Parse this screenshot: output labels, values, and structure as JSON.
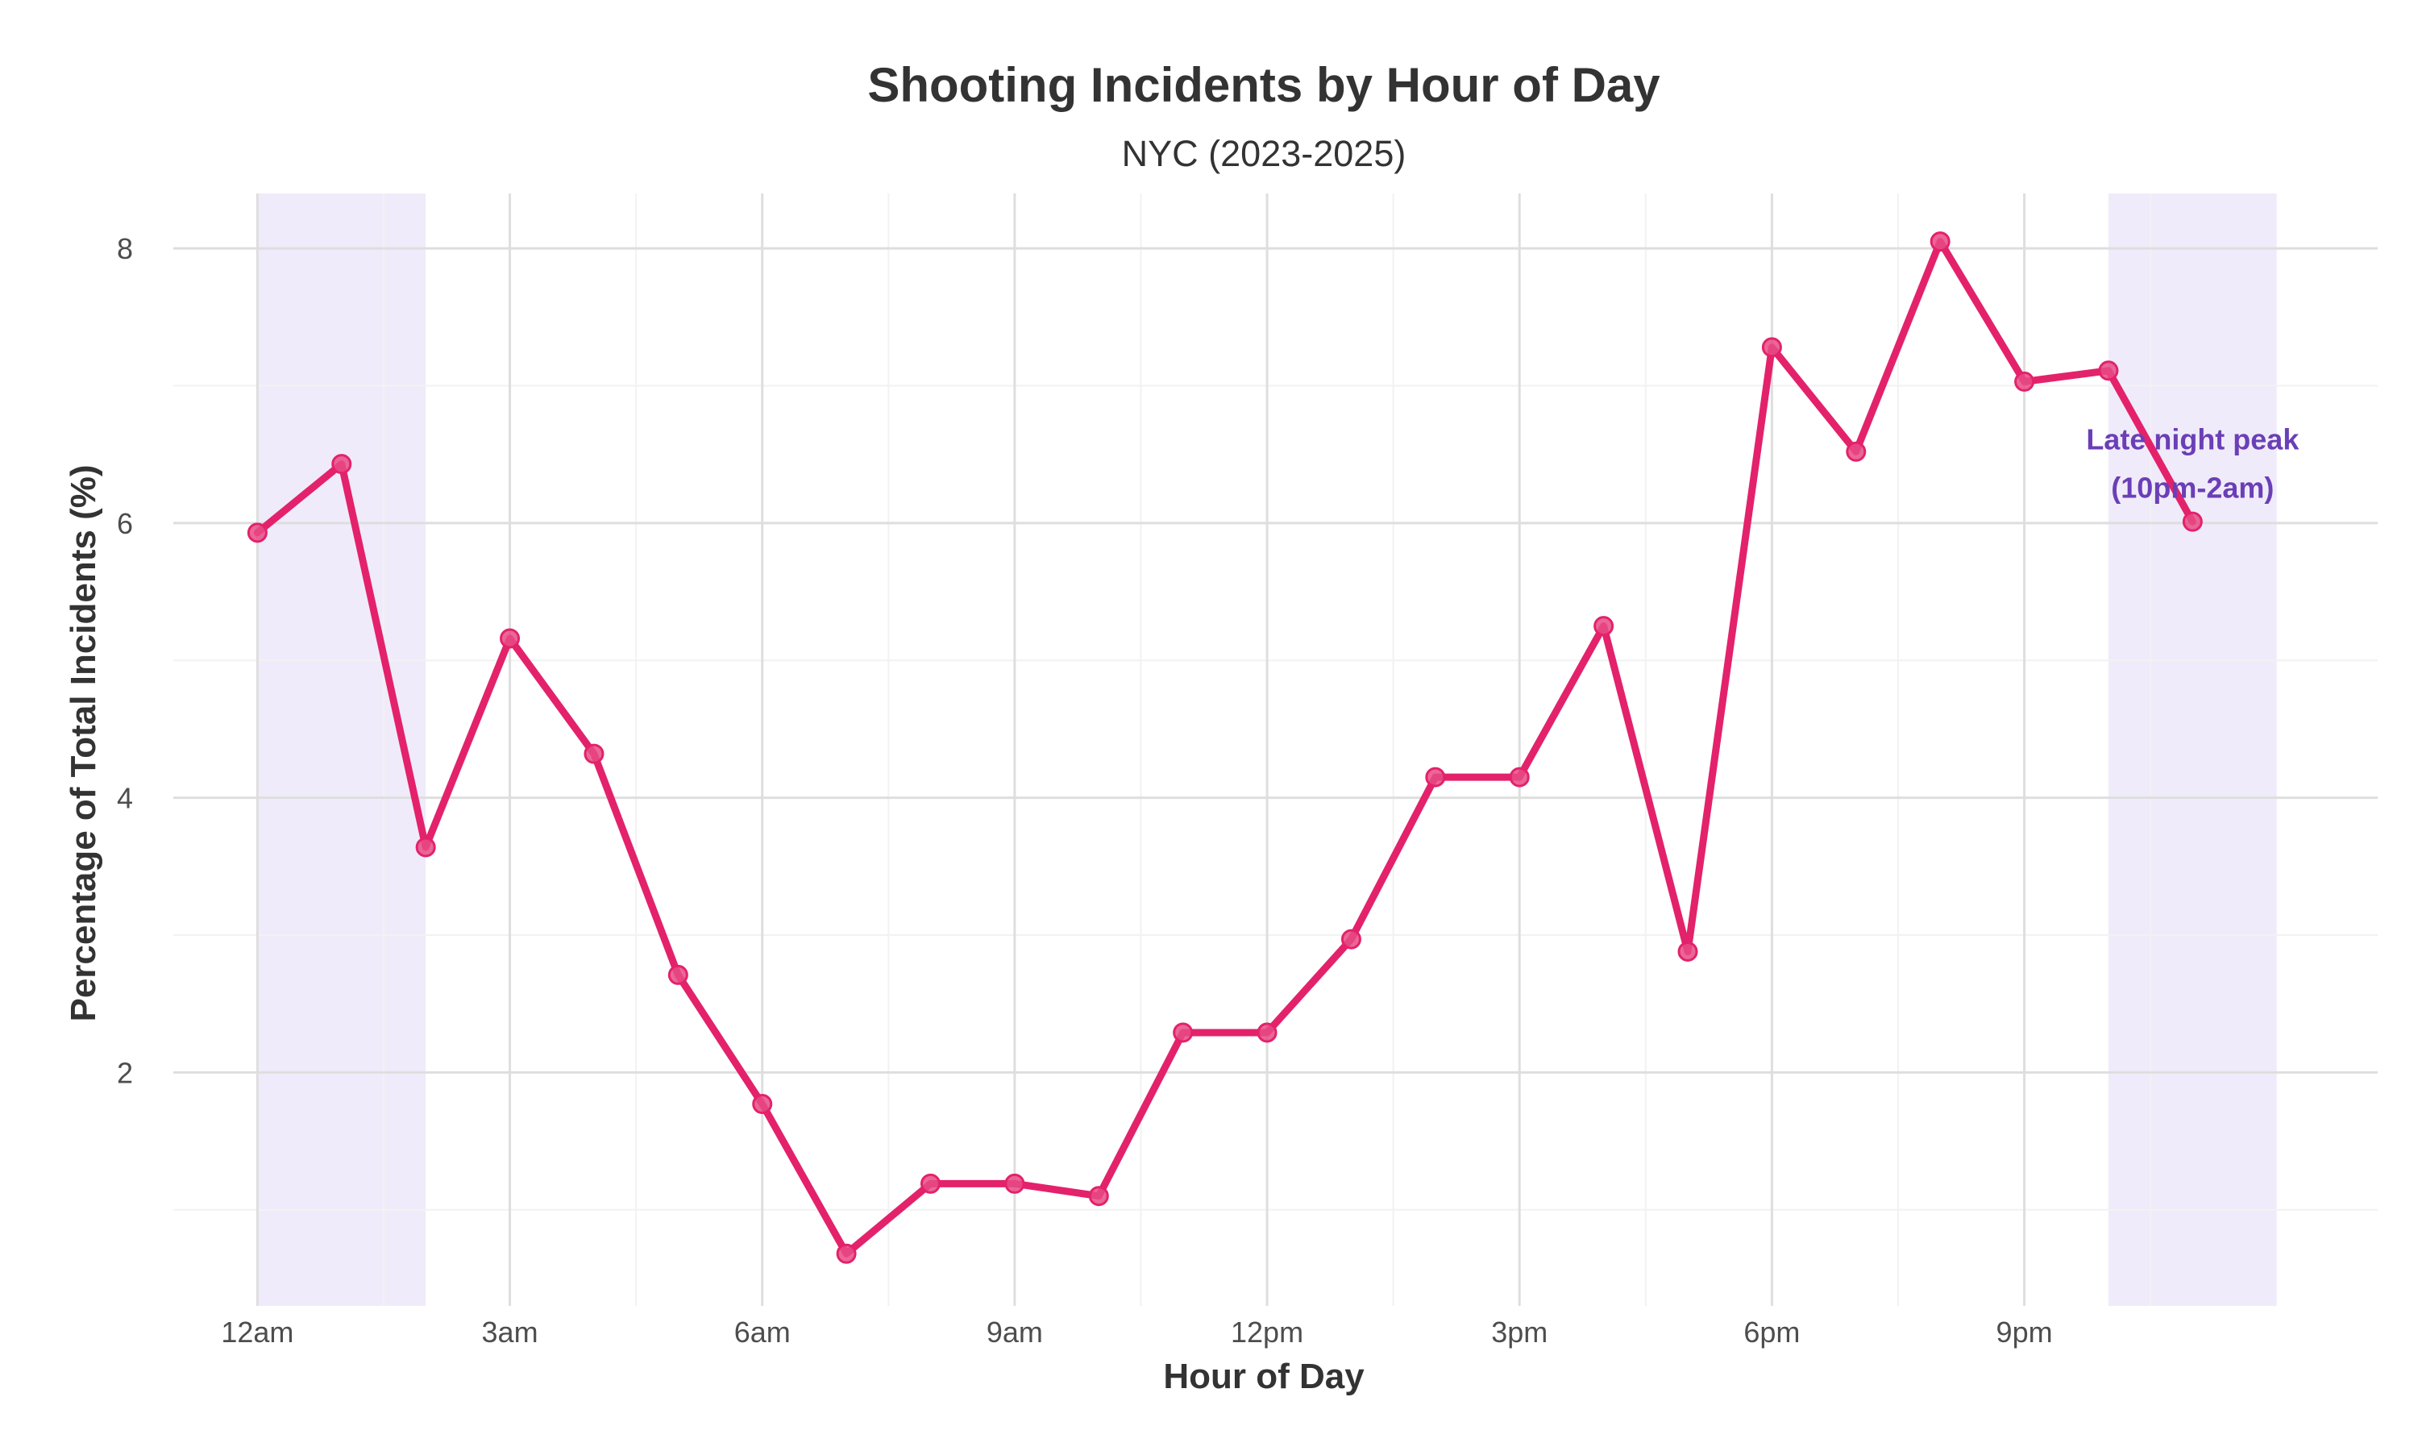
{
  "chart_data": {
    "type": "line",
    "title": "Shooting Incidents by Hour of Day",
    "subtitle": "NYC (2023-2025)",
    "xlabel": "Hour of Day",
    "ylabel": "Percentage of Total Incidents (%)",
    "x": [
      0,
      1,
      2,
      3,
      4,
      5,
      6,
      7,
      8,
      9,
      10,
      11,
      12,
      13,
      14,
      15,
      16,
      17,
      18,
      19,
      20,
      21,
      22,
      23
    ],
    "values": [
      5.93,
      6.43,
      3.64,
      5.16,
      4.32,
      2.71,
      1.77,
      0.68,
      1.19,
      1.19,
      1.1,
      2.29,
      2.29,
      2.97,
      4.15,
      4.15,
      5.25,
      2.88,
      7.28,
      6.52,
      8.05,
      7.03,
      7.11,
      6.01
    ],
    "x_ticks": [
      {
        "value": 0,
        "label": "12am"
      },
      {
        "value": 3,
        "label": "3am"
      },
      {
        "value": 6,
        "label": "6am"
      },
      {
        "value": 9,
        "label": "9am"
      },
      {
        "value": 12,
        "label": "12pm"
      },
      {
        "value": 15,
        "label": "3pm"
      },
      {
        "value": 18,
        "label": "6pm"
      },
      {
        "value": 21,
        "label": "9pm"
      }
    ],
    "y_ticks": [
      2,
      4,
      6,
      8
    ],
    "xlim": [
      -1,
      25.2
    ],
    "ylim": [
      0.3,
      8.4
    ],
    "grid": true,
    "highlight_ranges": [
      [
        0,
        2
      ],
      [
        22,
        24
      ]
    ],
    "annotation": {
      "lines": [
        "Late night peak",
        "(10pm-2am)"
      ],
      "x": 23,
      "y": 6.35
    },
    "colors": {
      "line": "#e3226b",
      "point": "#e84b85",
      "highlight": "#efeafa",
      "annotation": "#6a3fb6",
      "grid_major": "#dedede",
      "grid_minor": "#f2f2f2"
    }
  }
}
